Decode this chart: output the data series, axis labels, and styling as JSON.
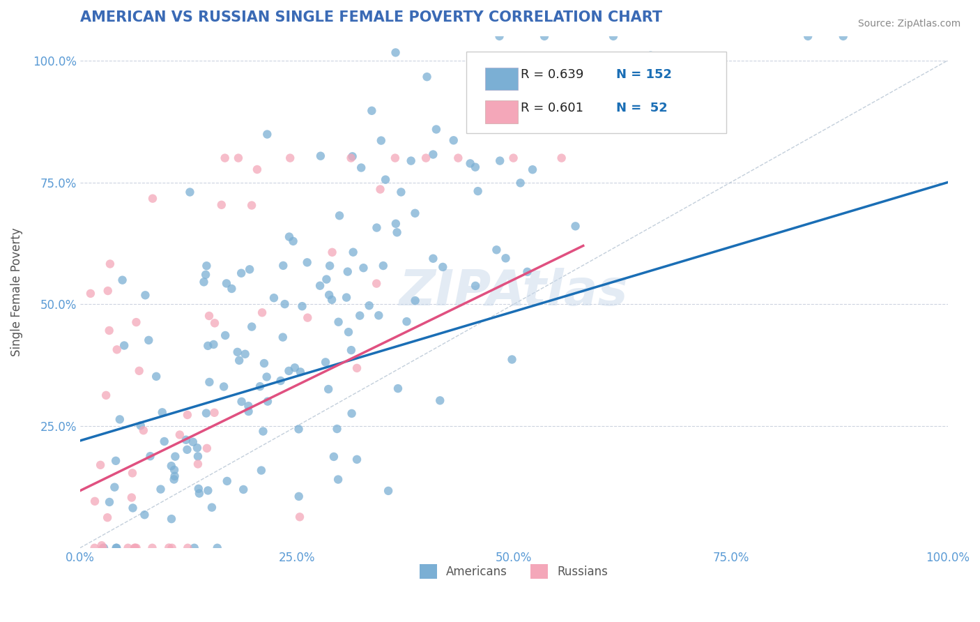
{
  "title": "AMERICAN VS RUSSIAN SINGLE FEMALE POVERTY CORRELATION CHART",
  "source": "Source: ZipAtlas.com",
  "xlabel": "",
  "ylabel": "Single Female Poverty",
  "american_R": 0.639,
  "american_N": 152,
  "russian_R": 0.601,
  "russian_N": 52,
  "american_color": "#7bafd4",
  "russian_color": "#f4a7b9",
  "american_line_color": "#1a6eb5",
  "russian_line_color": "#e05080",
  "title_color": "#3a6ab5",
  "legend_R_color": "#1a6eb5",
  "axis_label_color": "#5b9bd5",
  "watermark_color": "#c8d8ea",
  "background_color": "#ffffff",
  "grid_color": "#c0c8d8",
  "xlim": [
    0.0,
    1.0
  ],
  "ylim": [
    0.0,
    1.05
  ],
  "xtick_labels": [
    "0.0%",
    "25.0%",
    "50.0%",
    "75.0%",
    "100.0%"
  ],
  "xtick_positions": [
    0.0,
    0.25,
    0.5,
    0.75,
    1.0
  ],
  "ytick_labels": [
    "25.0%",
    "50.0%",
    "75.0%",
    "100.0%"
  ],
  "ytick_positions": [
    0.25,
    0.5,
    0.75,
    1.0
  ],
  "american_seed": 42,
  "russian_seed": 99
}
